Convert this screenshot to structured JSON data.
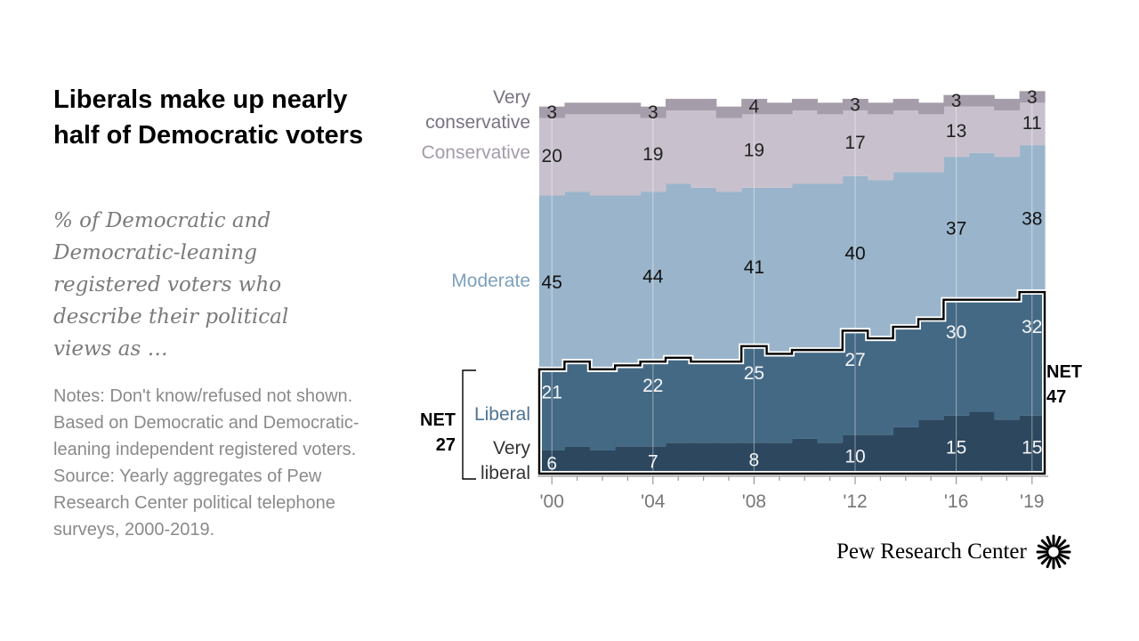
{
  "title": "Liberals make up nearly half of Democratic voters",
  "subtitle": "% of Democratic and Democratic-leaning registered voters who describe their political views as …",
  "notes": {
    "line1": "Notes: Don't know/refused not shown. Based on Democratic and Democratic-leaning independent registered voters.",
    "line2": "Source: Yearly aggregates of Pew Research Center political telephone surveys, 2000-2019."
  },
  "logo": {
    "text": "Pew Research Center",
    "icon": "pew-sunburst-icon"
  },
  "colors": {
    "very_liberal": "#2d475e",
    "liberal": "#446984",
    "moderate": "#9ab5cb",
    "conservative": "#c8c1cd",
    "very_conservative": "#a69daa",
    "axis_text": "#777777"
  },
  "chart_data": {
    "type": "area",
    "x": [
      2000,
      2001,
      2002,
      2003,
      2004,
      2005,
      2006,
      2007,
      2008,
      2009,
      2010,
      2011,
      2012,
      2013,
      2014,
      2015,
      2016,
      2017,
      2018,
      2019
    ],
    "xtick_labels": [
      "'00",
      "'04",
      "'08",
      "'12",
      "'16",
      "'19"
    ],
    "xtick_years": [
      2000,
      2004,
      2008,
      2012,
      2016,
      2019
    ],
    "ylim": [
      0,
      100
    ],
    "series": [
      {
        "key": "very_liberal",
        "name": "Very liberal",
        "values": [
          6,
          7,
          6,
          7,
          7,
          8,
          8,
          8,
          8,
          8,
          9,
          8,
          10,
          10,
          12,
          14,
          15,
          16,
          14,
          15
        ]
      },
      {
        "key": "liberal",
        "name": "Liberal",
        "values": [
          21,
          22,
          21,
          21,
          22,
          22,
          21,
          21,
          25,
          23,
          23,
          24,
          27,
          25,
          26,
          26,
          30,
          29,
          31,
          32
        ]
      },
      {
        "key": "moderate",
        "name": "Moderate",
        "values": [
          45,
          44,
          45,
          44,
          44,
          45,
          45,
          44,
          41,
          43,
          43,
          43,
          40,
          41,
          40,
          38,
          37,
          38,
          37,
          38
        ]
      },
      {
        "key": "conservative",
        "name": "Conservative",
        "values": [
          20,
          20,
          21,
          21,
          19,
          19,
          20,
          19,
          19,
          19,
          19,
          18,
          17,
          17,
          16,
          15,
          13,
          12,
          12,
          11
        ]
      },
      {
        "key": "very_conservative",
        "name": "Very conservative",
        "values": [
          3,
          3,
          3,
          3,
          3,
          3,
          3,
          3,
          4,
          3,
          3,
          3,
          3,
          3,
          3,
          3,
          3,
          3,
          3,
          3
        ]
      }
    ],
    "data_labels": [
      {
        "series": "very_conservative",
        "year": 2000,
        "text": "3"
      },
      {
        "series": "very_conservative",
        "year": 2004,
        "text": "3"
      },
      {
        "series": "very_conservative",
        "year": 2008,
        "text": "4"
      },
      {
        "series": "very_conservative",
        "year": 2012,
        "text": "3"
      },
      {
        "series": "very_conservative",
        "year": 2016,
        "text": "3"
      },
      {
        "series": "very_conservative",
        "year": 2019,
        "text": "3"
      },
      {
        "series": "conservative",
        "year": 2000,
        "text": "20"
      },
      {
        "series": "conservative",
        "year": 2004,
        "text": "19"
      },
      {
        "series": "conservative",
        "year": 2008,
        "text": "19"
      },
      {
        "series": "conservative",
        "year": 2012,
        "text": "17"
      },
      {
        "series": "conservative",
        "year": 2016,
        "text": "13"
      },
      {
        "series": "conservative",
        "year": 2019,
        "text": "11"
      },
      {
        "series": "moderate",
        "year": 2000,
        "text": "45"
      },
      {
        "series": "moderate",
        "year": 2004,
        "text": "44"
      },
      {
        "series": "moderate",
        "year": 2008,
        "text": "41"
      },
      {
        "series": "moderate",
        "year": 2012,
        "text": "40"
      },
      {
        "series": "moderate",
        "year": 2016,
        "text": "37"
      },
      {
        "series": "moderate",
        "year": 2019,
        "text": "38"
      },
      {
        "series": "liberal",
        "year": 2000,
        "text": "21"
      },
      {
        "series": "liberal",
        "year": 2004,
        "text": "22"
      },
      {
        "series": "liberal",
        "year": 2008,
        "text": "25"
      },
      {
        "series": "liberal",
        "year": 2012,
        "text": "27"
      },
      {
        "series": "liberal",
        "year": 2016,
        "text": "30"
      },
      {
        "series": "liberal",
        "year": 2019,
        "text": "32"
      },
      {
        "series": "very_liberal",
        "year": 2000,
        "text": "6"
      },
      {
        "series": "very_liberal",
        "year": 2004,
        "text": "7"
      },
      {
        "series": "very_liberal",
        "year": 2008,
        "text": "8"
      },
      {
        "series": "very_liberal",
        "year": 2012,
        "text": "10"
      },
      {
        "series": "very_liberal",
        "year": 2016,
        "text": "15"
      },
      {
        "series": "very_liberal",
        "year": 2019,
        "text": "15"
      }
    ],
    "series_labels": {
      "very_conservative": [
        "Very",
        "conservative"
      ],
      "conservative": [
        "Conservative"
      ],
      "moderate": [
        "Moderate"
      ],
      "liberal": [
        "Liberal"
      ],
      "very_liberal": [
        "Very",
        "liberal"
      ]
    },
    "net_labels": {
      "start": {
        "label": "NET",
        "value": "27"
      },
      "end": {
        "label": "NET",
        "value": "47"
      }
    }
  }
}
